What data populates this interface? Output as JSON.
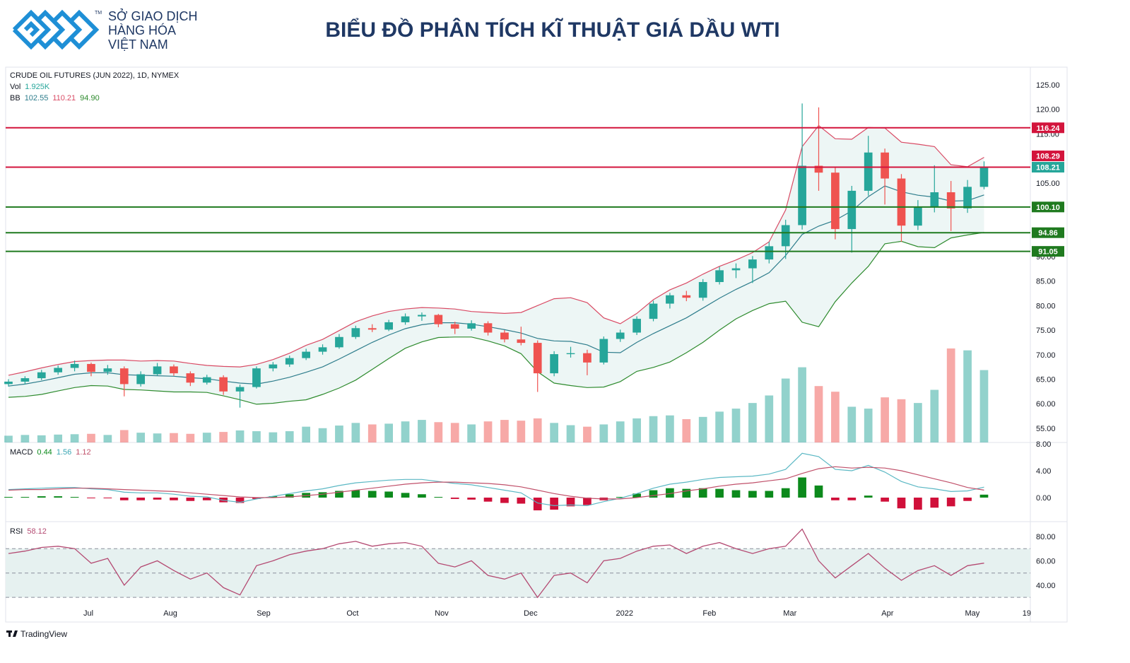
{
  "header": {
    "logo_lines": [
      "SỞ GIAO DỊCH",
      "HÀNG HÓA",
      "VIỆT NAM"
    ],
    "logo_mark": "TM",
    "title": "BIỂU ĐỒ PHÂN TÍCH KĨ THUẬT GIÁ DẦU WTI"
  },
  "footer": {
    "brand": "TradingView"
  },
  "chart_data": {
    "type": "candlestick",
    "title": "CRUDE OIL FUTURES (JUN 2022), 1D, NYMEX",
    "legend": {
      "vol_label": "Vol",
      "vol_value": "1.925K",
      "bb_label": "BB",
      "bb_values": [
        "102.55",
        "110.21",
        "94.90"
      ]
    },
    "up_color": "#26a69a",
    "down_color": "#ef5350",
    "xlim": [
      -0.17,
      61.8
    ],
    "xticks": [
      {
        "value": 4.83,
        "label": "Jul"
      },
      {
        "value": 9.79,
        "label": "Aug"
      },
      {
        "value": 15.43,
        "label": "Sep"
      },
      {
        "value": 20.81,
        "label": "Oct"
      },
      {
        "value": 26.2,
        "label": "Nov"
      },
      {
        "value": 31.58,
        "label": "Dec"
      },
      {
        "value": 37.26,
        "label": "2022"
      },
      {
        "value": 42.39,
        "label": "Feb"
      },
      {
        "value": 47.26,
        "label": "Mar"
      },
      {
        "value": 53.16,
        "label": "Apr"
      },
      {
        "value": 58.29,
        "label": "May"
      },
      {
        "value": 61.58,
        "label": "19"
      }
    ],
    "ylim": [
      52.1,
      128.6
    ],
    "yticks": [
      {
        "value": 55,
        "label": "55.00"
      },
      {
        "value": 60,
        "label": "60.00"
      },
      {
        "value": 65,
        "label": "65.00"
      },
      {
        "value": 70,
        "label": "70.00"
      },
      {
        "value": 75,
        "label": "75.00"
      },
      {
        "value": 80,
        "label": "80.00"
      },
      {
        "value": 85,
        "label": "85.00"
      },
      {
        "value": 90,
        "label": "90.00"
      },
      {
        "value": 95,
        "label": "95.00"
      },
      {
        "value": 100,
        "label": "100.00"
      },
      {
        "value": 105,
        "label": "105.00"
      },
      {
        "value": 110,
        "label": "110.00"
      },
      {
        "value": 115,
        "label": "115.00"
      },
      {
        "value": 120,
        "label": "120.00"
      },
      {
        "value": 125,
        "label": "125.00"
      }
    ],
    "ohlc": [
      [
        64.0,
        65.0,
        63.5,
        64.5
      ],
      [
        64.5,
        65.6,
        63.9,
        65.2
      ],
      [
        65.2,
        66.9,
        64.8,
        66.4
      ],
      [
        66.4,
        67.8,
        65.9,
        67.3
      ],
      [
        67.3,
        68.8,
        66.6,
        68.1
      ],
      [
        68.1,
        68.4,
        65.6,
        66.5
      ],
      [
        66.5,
        67.9,
        65.9,
        67.2
      ],
      [
        67.2,
        67.6,
        61.5,
        64.0
      ],
      [
        64.0,
        66.6,
        63.5,
        66.0
      ],
      [
        66.0,
        68.3,
        65.7,
        67.6
      ],
      [
        67.6,
        68.0,
        65.7,
        66.2
      ],
      [
        66.2,
        66.6,
        63.6,
        64.3
      ],
      [
        64.3,
        65.9,
        63.9,
        65.4
      ],
      [
        65.4,
        65.8,
        61.8,
        62.5
      ],
      [
        62.5,
        63.9,
        59.2,
        63.4
      ],
      [
        63.4,
        67.6,
        63.1,
        67.2
      ],
      [
        67.2,
        68.5,
        66.6,
        68.0
      ],
      [
        68.0,
        69.8,
        67.5,
        69.3
      ],
      [
        69.3,
        71.2,
        68.9,
        70.6
      ],
      [
        70.6,
        72.1,
        70.0,
        71.5
      ],
      [
        71.5,
        74.2,
        71.2,
        73.6
      ],
      [
        73.6,
        75.9,
        73.2,
        75.4
      ],
      [
        75.4,
        76.2,
        74.6,
        75.1
      ],
      [
        75.1,
        77.1,
        74.8,
        76.6
      ],
      [
        76.6,
        78.4,
        76.1,
        77.8
      ],
      [
        77.8,
        78.6,
        76.9,
        78.1
      ],
      [
        78.1,
        78.3,
        75.6,
        76.2
      ],
      [
        76.2,
        76.7,
        74.2,
        75.3
      ],
      [
        75.3,
        77.0,
        74.9,
        76.4
      ],
      [
        76.4,
        76.8,
        73.9,
        74.5
      ],
      [
        74.5,
        75.0,
        72.5,
        73.1
      ],
      [
        73.1,
        75.7,
        71.9,
        72.4
      ],
      [
        72.4,
        72.9,
        62.4,
        66.2
      ],
      [
        66.2,
        70.7,
        65.6,
        70.1
      ],
      [
        70.1,
        71.6,
        69.4,
        70.3
      ],
      [
        70.3,
        71.0,
        65.8,
        68.4
      ],
      [
        68.4,
        73.7,
        68.0,
        73.2
      ],
      [
        73.2,
        75.1,
        72.6,
        74.5
      ],
      [
        74.5,
        77.8,
        74.0,
        77.3
      ],
      [
        77.3,
        81.0,
        76.8,
        80.4
      ],
      [
        80.4,
        82.6,
        79.4,
        82.1
      ],
      [
        82.1,
        83.0,
        80.9,
        81.6
      ],
      [
        81.6,
        85.4,
        81.0,
        84.8
      ],
      [
        84.8,
        87.9,
        84.3,
        87.2
      ],
      [
        87.2,
        88.6,
        85.6,
        87.6
      ],
      [
        87.6,
        90.1,
        84.6,
        89.4
      ],
      [
        89.4,
        93.0,
        88.6,
        92.1
      ],
      [
        92.1,
        97.5,
        89.5,
        96.4
      ],
      [
        96.4,
        121.2,
        95.5,
        108.5
      ],
      [
        108.5,
        120.4,
        103.4,
        107.1
      ],
      [
        107.1,
        108.3,
        93.5,
        95.6
      ],
      [
        95.6,
        104.4,
        90.8,
        103.4
      ],
      [
        103.4,
        114.6,
        102.4,
        111.2
      ],
      [
        111.2,
        112.0,
        100.6,
        105.9
      ],
      [
        105.9,
        106.8,
        93.0,
        96.3
      ],
      [
        96.3,
        101.5,
        95.4,
        100.2
      ],
      [
        100.2,
        108.6,
        99.0,
        103.1
      ],
      [
        103.1,
        105.4,
        95.2,
        99.8
      ],
      [
        99.8,
        105.6,
        98.9,
        104.2
      ],
      [
        104.2,
        109.4,
        103.7,
        108.21
      ]
    ],
    "volume": [
      180,
      200,
      190,
      210,
      220,
      230,
      200,
      330,
      260,
      240,
      250,
      230,
      260,
      280,
      320,
      300,
      270,
      300,
      420,
      380,
      450,
      520,
      480,
      500,
      560,
      600,
      540,
      520,
      480,
      560,
      600,
      580,
      640,
      520,
      460,
      420,
      480,
      560,
      640,
      700,
      720,
      620,
      680,
      820,
      900,
      1050,
      1250,
      1700,
      2000,
      1500,
      1350,
      950,
      900,
      1200,
      1150,
      1050,
      1400,
      2500,
      2450,
      1925
    ],
    "bb": {
      "colors": {
        "upper": "#d94a64",
        "middle": "#2e7d8c",
        "lower": "#2e8b2e",
        "fill": "#e9f4f2"
      },
      "upper": [
        65.8,
        66.5,
        67.3,
        68.0,
        68.6,
        68.8,
        68.9,
        68.9,
        68.7,
        68.8,
        68.7,
        68.2,
        67.8,
        67.6,
        67.5,
        68.0,
        69.0,
        70.3,
        71.9,
        73.1,
        74.9,
        76.7,
        77.9,
        78.8,
        79.3,
        79.6,
        79.5,
        79.3,
        78.8,
        78.6,
        78.4,
        78.6,
        80.0,
        81.4,
        81.6,
        80.6,
        77.5,
        76.3,
        78.4,
        81.2,
        83.2,
        84.6,
        86.4,
        88.0,
        89.3,
        90.8,
        93.0,
        99.5,
        112.4,
        116.7,
        114.0,
        113.9,
        116.3,
        116.2,
        113.3,
        112.9,
        112.4,
        108.7,
        108.3,
        110.21
      ],
      "middle": [
        63.6,
        64.0,
        64.6,
        65.3,
        66.0,
        66.3,
        66.3,
        65.9,
        65.8,
        65.7,
        65.6,
        65.3,
        65.1,
        64.6,
        64.2,
        64.0,
        64.6,
        65.4,
        66.4,
        67.5,
        69.1,
        70.8,
        72.5,
        74.0,
        75.3,
        76.1,
        76.5,
        76.5,
        76.2,
        75.7,
        75.1,
        74.4,
        73.3,
        72.8,
        72.7,
        72.0,
        70.5,
        70.4,
        72.5,
        74.3,
        75.9,
        77.5,
        79.5,
        81.5,
        83.3,
        84.9,
        86.7,
        90.2,
        94.5,
        96.2,
        97.4,
        99.3,
        102.2,
        104.4,
        103.2,
        102.5,
        102.1,
        101.3,
        101.4,
        102.55
      ],
      "lower": [
        61.3,
        61.5,
        61.9,
        62.6,
        63.3,
        63.7,
        63.6,
        62.9,
        62.8,
        62.6,
        62.4,
        62.4,
        62.3,
        61.6,
        60.8,
        59.9,
        60.1,
        60.5,
        60.8,
        61.9,
        63.2,
        64.8,
        67.0,
        69.2,
        71.3,
        72.6,
        73.5,
        73.6,
        73.6,
        72.8,
        71.8,
        70.2,
        66.5,
        64.2,
        63.7,
        63.3,
        63.4,
        64.5,
        66.6,
        67.4,
        68.5,
        70.4,
        72.5,
        75.0,
        77.3,
        79.0,
        80.4,
        80.9,
        76.6,
        75.7,
        80.8,
        84.6,
        88.0,
        92.6,
        93.1,
        92.0,
        91.8,
        93.8,
        94.4,
        94.9
      ]
    },
    "levels": [
      {
        "value": 116.24,
        "color": "#d3143c"
      },
      {
        "value": 108.21,
        "color": "#d3143c"
      },
      {
        "value": 100.1,
        "color": "#1f7a1f"
      },
      {
        "value": 94.86,
        "color": "#1f7a1f"
      },
      {
        "value": 91.05,
        "color": "#1f7a1f"
      }
    ],
    "price_tags": [
      {
        "value": 116.24,
        "label": "116.24",
        "color": "#d3143c"
      },
      {
        "value": 108.29,
        "label": "108.29",
        "color": "#d3143c"
      },
      {
        "value": 108.21,
        "label": "108.21",
        "color": "#26a69a"
      },
      {
        "value": 100.1,
        "label": "100.10",
        "color": "#1f7a1f"
      },
      {
        "value": 94.86,
        "label": "94.86",
        "color": "#1f7a1f"
      },
      {
        "value": 91.05,
        "label": "91.05",
        "color": "#1f7a1f"
      }
    ],
    "macd": {
      "label": "MACD",
      "legend_values": [
        "0.44",
        "1.56",
        "1.12"
      ],
      "ylim": [
        -3.58,
        8
      ],
      "yticks": [
        {
          "value": 0,
          "label": "0.00"
        },
        {
          "value": 4,
          "label": "4.00"
        },
        {
          "value": 8,
          "label": "8.00"
        }
      ],
      "colors": {
        "hist_up": "#0c8a1c",
        "hist_down": "#d0103a",
        "macd": "#5bb8c4",
        "signal": "#c0506a"
      },
      "hist": [
        0.1,
        0.1,
        0.2,
        0.2,
        0.1,
        -0.1,
        -0.1,
        -0.4,
        -0.4,
        -0.3,
        -0.4,
        -0.5,
        -0.4,
        -0.7,
        -0.8,
        -0.2,
        0.2,
        0.5,
        0.7,
        0.8,
        1.0,
        1.1,
        1.0,
        0.9,
        0.7,
        0.5,
        0.1,
        -0.2,
        -0.3,
        -0.6,
        -0.8,
        -0.9,
        -1.9,
        -1.8,
        -1.3,
        -1.1,
        -0.4,
        0.1,
        0.6,
        1.1,
        1.4,
        1.3,
        1.4,
        1.3,
        1.1,
        1.0,
        1.0,
        1.4,
        3.0,
        1.8,
        -0.4,
        -0.4,
        0.3,
        -0.6,
        -1.6,
        -1.8,
        -1.5,
        -1.3,
        -0.5,
        0.44
      ],
      "macd": [
        1.2,
        1.3,
        1.4,
        1.5,
        1.5,
        1.3,
        1.2,
        0.8,
        0.7,
        0.7,
        0.5,
        0.2,
        0.1,
        -0.4,
        -0.7,
        -0.2,
        0.2,
        0.6,
        1.0,
        1.3,
        1.8,
        2.2,
        2.4,
        2.6,
        2.7,
        2.7,
        2.4,
        2.1,
        1.9,
        1.5,
        1.1,
        0.7,
        -0.8,
        -1.2,
        -1.1,
        -1.2,
        -0.6,
        -0.1,
        0.6,
        1.4,
        2.0,
        2.3,
        2.7,
        3.0,
        3.1,
        3.2,
        3.5,
        4.2,
        6.6,
        6.1,
        4.2,
        4.0,
        4.8,
        3.8,
        2.4,
        1.6,
        1.3,
        0.9,
        1.0,
        1.56
      ],
      "signal": [
        1.1,
        1.2,
        1.2,
        1.3,
        1.4,
        1.4,
        1.3,
        1.2,
        1.1,
        1.0,
        0.9,
        0.7,
        0.5,
        0.3,
        0.1,
        0.0,
        0.0,
        0.1,
        0.3,
        0.5,
        0.8,
        1.1,
        1.4,
        1.7,
        2.0,
        2.2,
        2.3,
        2.3,
        2.2,
        2.1,
        1.9,
        1.6,
        1.1,
        0.6,
        0.2,
        -0.1,
        -0.2,
        -0.2,
        0.0,
        0.3,
        0.6,
        1.0,
        1.3,
        1.7,
        2.0,
        2.2,
        2.5,
        2.8,
        3.6,
        4.3,
        4.6,
        4.4,
        4.5,
        4.4,
        4.0,
        3.4,
        2.8,
        2.2,
        1.5,
        1.12
      ]
    },
    "rsi": {
      "label": "RSI",
      "legend_value": "58.12",
      "color": "#b44a72",
      "band_color": "#e6f1f0",
      "ylim": [
        27.2,
        91
      ],
      "levels": [
        30,
        50,
        70
      ],
      "yticks": [
        {
          "value": 40,
          "label": "40.00"
        },
        {
          "value": 60,
          "label": "60.00"
        },
        {
          "value": 80,
          "label": "80.00"
        }
      ],
      "values": [
        66,
        68,
        71,
        72,
        70,
        58,
        62,
        40,
        55,
        60,
        52,
        45,
        50,
        38,
        32,
        56,
        60,
        65,
        68,
        70,
        74,
        76,
        72,
        74,
        75,
        72,
        58,
        55,
        60,
        48,
        45,
        50,
        30,
        48,
        50,
        42,
        60,
        62,
        68,
        72,
        73,
        66,
        72,
        75,
        70,
        66,
        70,
        72,
        86,
        60,
        46,
        56,
        66,
        54,
        44,
        52,
        56,
        48,
        56,
        58.12
      ]
    }
  }
}
